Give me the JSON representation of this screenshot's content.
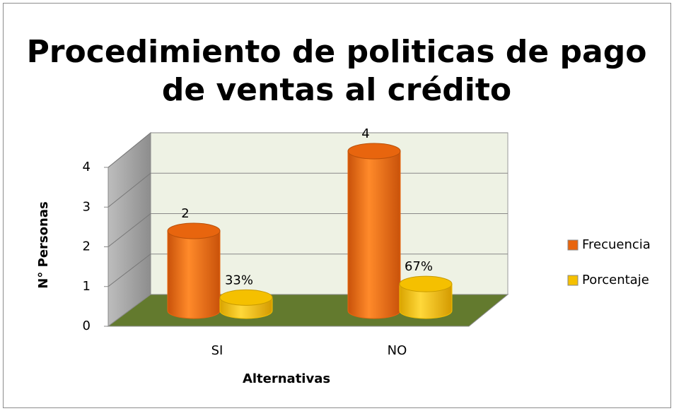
{
  "chart_data": {
    "type": "cylinder3d",
    "title": [
      "Procedimiento de politicas de pago",
      "de ventas al crédito"
    ],
    "xlabel": "Alternativas",
    "ylabel": "N° Personas",
    "categories": [
      "SI",
      "NO"
    ],
    "series": [
      {
        "name": "Frecuencia",
        "color": "#e8650e",
        "values": [
          2,
          4
        ]
      },
      {
        "name": "Porcentaje",
        "color": "#f5c000",
        "values": [
          0.33,
          0.67
        ],
        "value_labels": [
          "33%",
          "67%"
        ]
      }
    ],
    "ylim": [
      0,
      4
    ],
    "yticks": [
      0,
      1,
      2,
      3,
      4
    ],
    "grid": true,
    "legend": "right"
  }
}
